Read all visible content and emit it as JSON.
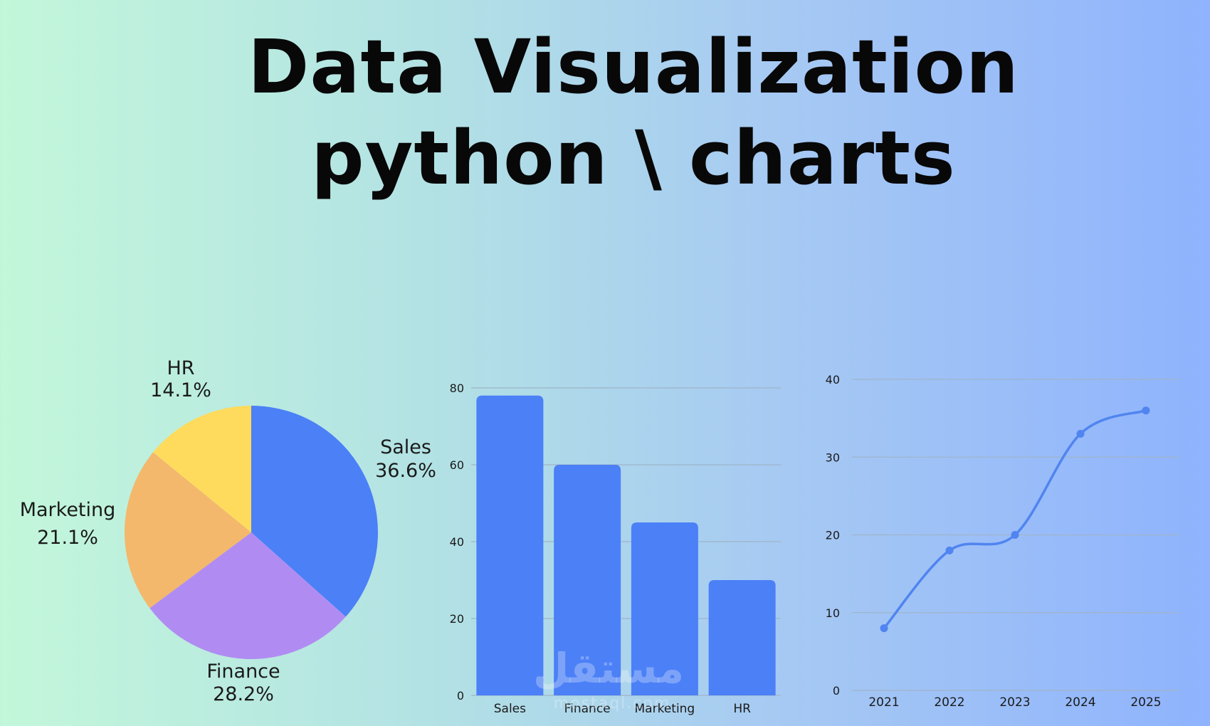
{
  "header": {
    "title_line1": "Data Visualization",
    "title_line2": "python \\ charts"
  },
  "watermark": {
    "text": "مستقل",
    "subtext": "mostaql.com"
  },
  "colors": {
    "bar": "#4b80f7",
    "line": "#5084f0",
    "grid": "#9fb4c8",
    "pie": {
      "Sales": "#4b80f7",
      "Finance": "#b08cf2",
      "Marketing": "#f3b86c",
      "HR": "#fedb5d"
    }
  },
  "chart_data": [
    {
      "type": "pie",
      "labels": [
        "Sales",
        "Finance",
        "Marketing",
        "HR"
      ],
      "values": [
        36.6,
        28.2,
        21.1,
        14.1
      ],
      "value_labels": [
        "36.6%",
        "28.2%",
        "21.1%",
        "14.1%"
      ],
      "start": "top",
      "direction": "clockwise"
    },
    {
      "type": "bar",
      "categories": [
        "Sales",
        "Finance",
        "Marketing",
        "HR"
      ],
      "values": [
        78,
        60,
        45,
        30
      ],
      "ylim": [
        0,
        80
      ],
      "yticks": [
        0,
        20,
        40,
        60,
        80
      ],
      "grid": true,
      "xlabel": "",
      "ylabel": ""
    },
    {
      "type": "line",
      "x": [
        "2021",
        "2022",
        "2023",
        "2024",
        "2025"
      ],
      "y": [
        8,
        18,
        20,
        33,
        36
      ],
      "ylim": [
        0,
        40
      ],
      "yticks": [
        0,
        10,
        20,
        30,
        40
      ],
      "grid": true,
      "smooth": true,
      "markers": true,
      "xlabel": "",
      "ylabel": ""
    }
  ]
}
